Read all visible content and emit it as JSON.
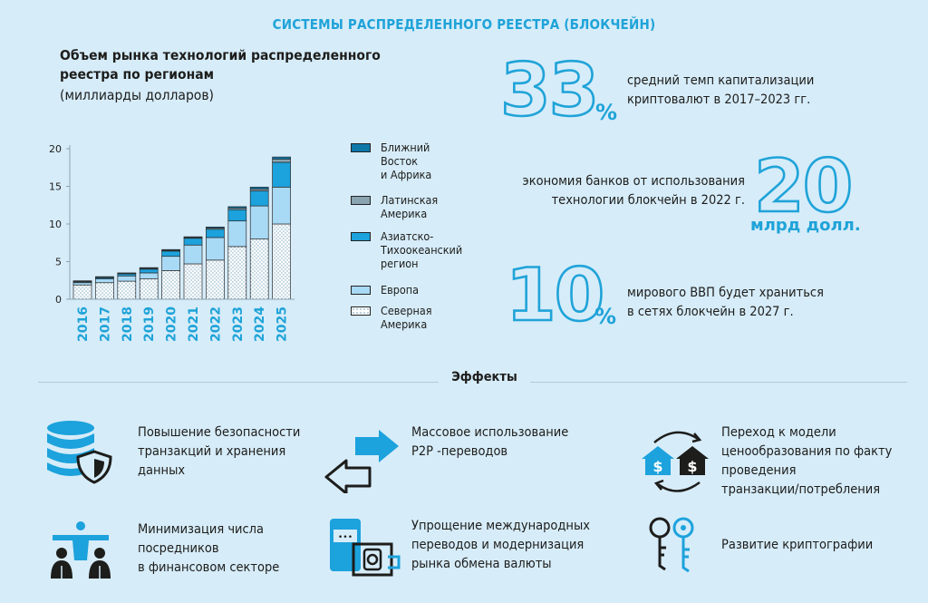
{
  "header": {
    "title": "СИСТЕМЫ РАСПРЕДЕЛЕННОГО РЕЕСТРА (БЛОКЧЕЙН)"
  },
  "chart_data": {
    "type": "bar",
    "stacked": true,
    "title": "Объем рынка технологий распределенного реестра по регионам",
    "subtitle": "(миллиарды долларов)",
    "categories": [
      "2016",
      "2017",
      "2018",
      "2019",
      "2020",
      "2021",
      "2022",
      "2023",
      "2024",
      "2025"
    ],
    "ylim": [
      0,
      20
    ],
    "yticks": [
      0,
      5,
      10,
      15,
      20
    ],
    "grid": false,
    "legend_position": "right",
    "series": [
      {
        "name": "Северная Америка",
        "color": "#ffffff",
        "pattern": "dots",
        "values": [
          1.9,
          2.2,
          2.4,
          2.7,
          3.8,
          4.7,
          5.2,
          7.0,
          8.0,
          10.0
        ]
      },
      {
        "name": "Европа",
        "color": "#a8d9f5",
        "values": [
          0.3,
          0.5,
          0.7,
          0.8,
          1.9,
          2.5,
          3.0,
          3.4,
          4.4,
          4.9
        ]
      },
      {
        "name": "Азиатско-Тихоокеанский регион",
        "color": "#1ca2dc",
        "values": [
          0.15,
          0.2,
          0.3,
          0.5,
          0.7,
          0.9,
          1.1,
          1.5,
          2.0,
          3.3
        ]
      },
      {
        "name": "Латинская Америка",
        "color": "#8aa3b0",
        "values": [
          0.05,
          0.05,
          0.05,
          0.1,
          0.1,
          0.1,
          0.15,
          0.2,
          0.25,
          0.4
        ]
      },
      {
        "name": "Ближний Восток и Африка",
        "color": "#0e78a8",
        "values": [
          0.05,
          0.05,
          0.05,
          0.1,
          0.1,
          0.1,
          0.15,
          0.2,
          0.25,
          0.3
        ]
      }
    ]
  },
  "legend": [
    {
      "label": "Ближний\nВосток\nи Африка",
      "color": "#0e78a8",
      "pattern": ""
    },
    {
      "label": "Латинская\nАмерика",
      "color": "#8aa3b0",
      "pattern": ""
    },
    {
      "label": "Азиатско-\nТихоокеанский\nрегион",
      "color": "#1ca2dc",
      "pattern": ""
    },
    {
      "label": "Европа",
      "color": "#a8d9f5",
      "pattern": ""
    },
    {
      "label": "Северная\nАмерика",
      "color": "#ffffff",
      "pattern": "dots"
    }
  ],
  "stats": [
    {
      "value": "33",
      "unit": "%",
      "text": "средний темп капитализации\nкриптовалют в 2017–2023 гг."
    },
    {
      "value": "20",
      "unit": "млрд долл.",
      "text": "экономия банков от использования\nтехнологии блокчейн в 2022 г."
    },
    {
      "value": "10",
      "unit": "%",
      "text": "мирового ВВП будет храниться\nв сетях блокчейн в 2027 г."
    }
  ],
  "effects": {
    "title": "Эффекты",
    "items": [
      {
        "icon": "database-shield-icon",
        "text": "Повышение безопасности\nтранзакций и хранения\nданных"
      },
      {
        "icon": "transfer-arrows-icon",
        "text": "Массовое использование\nP2P -переводов"
      },
      {
        "icon": "house-pricing-cycle-icon",
        "text": "Переход к модели\nценообразования по факту\nпроведения\nтранзакции/потребления"
      },
      {
        "icon": "people-network-icon",
        "text": "Минимизация числа\nпосредников\nв финансовом секторе"
      },
      {
        "icon": "mobile-payment-icon",
        "text": "Упрощение международных\nпереводов и модернизация\nрынка обмена валюты"
      },
      {
        "icon": "keys-icon",
        "text": "Развитие криптографии"
      }
    ]
  }
}
